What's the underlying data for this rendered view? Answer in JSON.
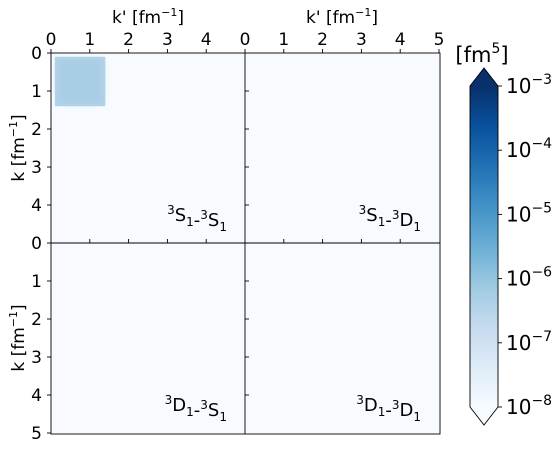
{
  "chart_data": {
    "type": "heatmap",
    "layout": "2x2 grid of panels sharing axes",
    "xlabel": "k' [fm",
    "xlabel_exp": "−1",
    "xlabel_close": "]",
    "ylabel": "k [fm",
    "ylabel_exp": "−1",
    "ylabel_close": "]",
    "xlim": [
      0,
      5
    ],
    "ylim": [
      0,
      5
    ],
    "x_ticks": [
      0,
      1,
      2,
      3,
      4,
      5
    ],
    "y_ticks": [
      0,
      1,
      2,
      3,
      4,
      5
    ],
    "y_inverted": true,
    "panels": [
      {
        "name": "3S1-3S1",
        "label_parts": [
          {
            "sup": "3",
            "base": "S",
            "sub": "1"
          },
          {
            "sep": "-"
          },
          {
            "sup": "3",
            "base": "S",
            "sub": "1"
          }
        ],
        "row": 0,
        "col": 0,
        "nonzero_region": {
          "k_min": 0.1,
          "k_max": 1.4,
          "kp_min": 0.1,
          "kp_max": 1.4,
          "peak": 1e-06
        }
      },
      {
        "name": "3S1-3D1",
        "label_parts": [
          {
            "sup": "3",
            "base": "S",
            "sub": "1"
          },
          {
            "sep": "-"
          },
          {
            "sup": "3",
            "base": "D",
            "sub": "1"
          }
        ],
        "row": 0,
        "col": 1,
        "nonzero_region": null
      },
      {
        "name": "3D1-3S1",
        "label_parts": [
          {
            "sup": "3",
            "base": "D",
            "sub": "1"
          },
          {
            "sep": "-"
          },
          {
            "sup": "3",
            "base": "S",
            "sub": "1"
          }
        ],
        "row": 1,
        "col": 0,
        "nonzero_region": null
      },
      {
        "name": "3D1-3D1",
        "label_parts": [
          {
            "sup": "3",
            "base": "D",
            "sub": "1"
          },
          {
            "sep": "-"
          },
          {
            "sup": "3",
            "base": "D",
            "sub": "1"
          }
        ],
        "row": 1,
        "col": 1,
        "nonzero_region": null
      }
    ],
    "colorbar": {
      "title_base": "[fm",
      "title_exp": "5",
      "title_close": "]",
      "scale": "log",
      "range": [
        1e-08,
        0.001
      ],
      "ticks": [
        {
          "value": 0.001,
          "mant": "10",
          "exp": "−3"
        },
        {
          "value": 0.0001,
          "mant": "10",
          "exp": "−4"
        },
        {
          "value": 1e-05,
          "mant": "10",
          "exp": "−5"
        },
        {
          "value": 1e-06,
          "mant": "10",
          "exp": "−6"
        },
        {
          "value": 1e-07,
          "mant": "10",
          "exp": "−7"
        },
        {
          "value": 1e-08,
          "mant": "10",
          "exp": "−8"
        }
      ],
      "extend": "both",
      "colormap": "Blues",
      "color_stops": [
        "#f7fbff",
        "#deebf7",
        "#c6dbef",
        "#9ecae1",
        "#6baed6",
        "#4292c6",
        "#2171b5",
        "#08519c",
        "#08306b"
      ]
    },
    "background_color": "#f7fbff",
    "grid": false,
    "legend": "none"
  }
}
